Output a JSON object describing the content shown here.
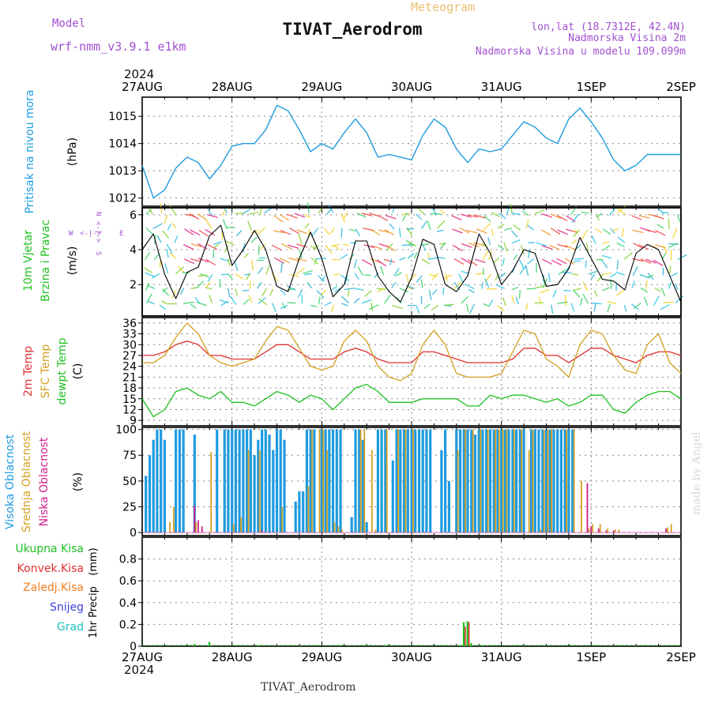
{
  "header": {
    "title": "TIVAT_Aerodrom",
    "subtitle": "Meteogram",
    "model_label": "Model",
    "model_name": "wrf-nmm_v3.9.1 e1km",
    "lonlat": "lon,lat (18.7312E, 42.4N)",
    "elevation": "Nadmorska Visina 2m",
    "model_elevation": "Nadmorska Visina u modelu 109.099m",
    "year_top": "2024",
    "year_bottom": "2024",
    "bottom_title": "TIVAT_Aerodrom",
    "credit": "made by Angel"
  },
  "colors": {
    "pressure": "#1e9be0",
    "t2m": "#e03030",
    "sfc": "#d4a020",
    "dewpt": "#20c020",
    "cloud_high": "#1e9be0",
    "cloud_mid": "#d4a020",
    "cloud_low": "#d0208c",
    "purple": "#a050d0",
    "grid": "#888888"
  },
  "chart_data": [
    {
      "type": "line",
      "id": "pressure",
      "ylabel": [
        "Pritisak na nivou mora",
        "(hPa)"
      ],
      "ylim": [
        1011.7,
        1015.7
      ],
      "yticks": [
        1012,
        1013,
        1014,
        1015
      ],
      "days": [
        "27AUG",
        "28AUG",
        "29AUG",
        "30AUG",
        "31AUG",
        "1SEP",
        "2SEP"
      ],
      "x_hours": [
        0,
        3,
        6,
        9,
        12,
        15,
        18,
        21,
        24,
        27,
        30,
        33,
        36,
        39,
        42,
        45,
        48,
        51,
        54,
        57,
        60,
        63,
        66,
        69,
        72,
        75,
        78,
        81,
        84,
        87,
        90,
        93,
        96,
        99,
        102,
        105,
        108,
        111,
        114,
        117,
        120,
        123,
        126,
        129,
        132,
        135,
        138,
        141,
        144
      ],
      "values": [
        1013.2,
        1012.0,
        1012.3,
        1013.1,
        1013.5,
        1013.3,
        1012.7,
        1013.2,
        1013.9,
        1014.0,
        1014.0,
        1014.5,
        1015.4,
        1015.2,
        1014.5,
        1013.7,
        1014.0,
        1013.8,
        1014.4,
        1014.9,
        1014.4,
        1013.5,
        1013.6,
        1013.5,
        1013.4,
        1014.3,
        1014.9,
        1014.6,
        1013.8,
        1013.3,
        1013.8,
        1013.7,
        1013.8,
        1014.3,
        1014.8,
        1014.6,
        1014.2,
        1014.0,
        1014.9,
        1015.3,
        1014.8,
        1014.2,
        1013.4,
        1013.0,
        1013.2,
        1013.6,
        1013.6,
        1013.6,
        1013.6
      ]
    },
    {
      "type": "line",
      "id": "wind",
      "ylabel": [
        "10m Vjetar",
        "Brzina i Pravac",
        "(m/s)"
      ],
      "compass": [
        "N",
        "S",
        "W",
        "E",
        "<-|->"
      ],
      "ylim": [
        0.2,
        6.4
      ],
      "yticks": [
        2,
        4,
        6
      ],
      "x_hours": [
        0,
        3,
        6,
        9,
        12,
        15,
        18,
        21,
        24,
        27,
        30,
        33,
        36,
        39,
        42,
        45,
        48,
        51,
        54,
        57,
        60,
        63,
        66,
        69,
        72,
        75,
        78,
        81,
        84,
        87,
        90,
        93,
        96,
        99,
        102,
        105,
        108,
        111,
        114,
        117,
        120,
        123,
        126,
        129,
        132,
        135,
        138,
        141,
        144
      ],
      "values": [
        4.0,
        4.9,
        2.6,
        1.2,
        2.7,
        3.0,
        4.8,
        5.4,
        3.1,
        4.0,
        5.1,
        4.0,
        1.9,
        1.6,
        3.5,
        5.0,
        3.5,
        1.3,
        2.0,
        4.5,
        4.5,
        2.5,
        1.6,
        1.0,
        2.4,
        4.6,
        4.3,
        2.0,
        1.6,
        2.5,
        4.9,
        3.8,
        2.0,
        2.8,
        4.0,
        3.8,
        1.9,
        2.0,
        2.9,
        4.7,
        3.5,
        2.3,
        2.2,
        1.7,
        3.8,
        4.3,
        4.0,
        2.5,
        1.0
      ]
    },
    {
      "type": "line",
      "id": "temperature",
      "ylabel": [
        "2m Temp",
        "SFC Temp",
        "dewpt Temp",
        "(C)"
      ],
      "ylim": [
        7.5,
        37.5
      ],
      "yticks": [
        9,
        12,
        15,
        18,
        21,
        24,
        27,
        30,
        33,
        36
      ],
      "x_hours": [
        0,
        3,
        6,
        9,
        12,
        15,
        18,
        21,
        24,
        27,
        30,
        33,
        36,
        39,
        42,
        45,
        48,
        51,
        54,
        57,
        60,
        63,
        66,
        69,
        72,
        75,
        78,
        81,
        84,
        87,
        90,
        93,
        96,
        99,
        102,
        105,
        108,
        111,
        114,
        117,
        120,
        123,
        126,
        129,
        132,
        135,
        138,
        141,
        144
      ],
      "series": [
        {
          "name": "2m Temp",
          "values": [
            27,
            27,
            28,
            30,
            31,
            30,
            27,
            27,
            26,
            26,
            26,
            28,
            30,
            30,
            28,
            26,
            26,
            26,
            28,
            29,
            28,
            26,
            25,
            25,
            25,
            28,
            28,
            27,
            26,
            25,
            25,
            25,
            25,
            26,
            29,
            29,
            27,
            27,
            25,
            27,
            29,
            29,
            27,
            26,
            25,
            27,
            28,
            28,
            27
          ]
        },
        {
          "name": "SFC Temp",
          "values": [
            25,
            25,
            27,
            32,
            36,
            33,
            27,
            25,
            24,
            25,
            26,
            31,
            35,
            34,
            29,
            24,
            23,
            24,
            31,
            34,
            31,
            24,
            21,
            20,
            22,
            30,
            34,
            30,
            22,
            21,
            21,
            21,
            22,
            28,
            34,
            33,
            26,
            24,
            21,
            30,
            34,
            33,
            27,
            23,
            22,
            30,
            33,
            25,
            22
          ]
        },
        {
          "name": "dewpt Temp",
          "values": [
            15,
            10,
            12,
            17,
            18,
            16,
            15,
            17,
            14,
            14,
            13,
            15,
            17,
            16,
            14,
            16,
            15,
            12,
            15,
            18,
            19,
            17,
            14,
            14,
            14,
            15,
            15,
            15,
            15,
            13,
            13,
            16,
            15,
            16,
            16,
            15,
            14,
            15,
            13,
            14,
            16,
            16,
            12,
            11,
            14,
            16,
            17,
            17,
            15
          ]
        }
      ]
    },
    {
      "type": "bar",
      "id": "cloud",
      "ylabel": [
        "Visoka Oblacnost",
        "Srednja Oblacnost",
        "Niska Oblacnost",
        "(%)"
      ],
      "ylim": [
        -3,
        102
      ],
      "yticks": [
        0,
        25,
        50,
        75,
        100
      ],
      "high_hours": [
        1,
        2,
        3,
        4,
        5,
        6,
        9,
        10,
        11,
        14,
        20,
        22,
        23,
        24,
        25,
        26,
        27,
        28,
        29,
        30,
        31,
        32,
        33,
        34,
        35,
        36,
        37,
        38,
        41,
        42,
        43,
        44,
        45,
        46,
        48,
        49,
        50,
        51,
        52,
        53,
        56,
        57,
        58,
        59,
        60,
        63,
        64,
        65,
        67,
        68,
        69,
        70,
        71,
        72,
        73,
        74,
        75,
        76,
        77,
        80,
        81,
        82,
        84,
        85,
        86,
        87,
        88,
        89,
        90,
        91,
        92,
        93,
        94,
        95,
        96,
        97,
        98,
        99,
        100,
        101,
        102,
        104,
        105,
        106,
        107,
        108,
        109,
        110,
        111,
        112,
        113,
        114,
        115
      ],
      "high_values": [
        55,
        75,
        90,
        100,
        100,
        90,
        100,
        100,
        100,
        95,
        100,
        100,
        100,
        100,
        100,
        100,
        100,
        100,
        100,
        75,
        90,
        100,
        100,
        95,
        80,
        100,
        100,
        90,
        30,
        40,
        40,
        100,
        100,
        100,
        100,
        100,
        100,
        100,
        100,
        100,
        15,
        100,
        100,
        90,
        10,
        100,
        100,
        100,
        70,
        100,
        100,
        100,
        100,
        100,
        100,
        100,
        100,
        100,
        100,
        80,
        100,
        50,
        100,
        100,
        100,
        100,
        100,
        95,
        100,
        100,
        100,
        100,
        100,
        100,
        100,
        100,
        100,
        100,
        100,
        100,
        100,
        100,
        100,
        100,
        100,
        100,
        100,
        100,
        100,
        100,
        100,
        100,
        100
      ],
      "mid_hours": [
        7,
        8,
        14,
        18,
        24,
        26,
        28,
        31,
        37,
        44,
        45,
        47,
        48,
        49,
        51,
        52,
        53,
        58,
        59,
        61,
        62,
        65,
        68,
        70,
        72,
        84,
        86,
        88,
        90,
        92,
        94,
        95,
        96,
        97,
        99,
        101,
        103,
        104,
        106,
        107,
        108,
        109,
        113,
        115,
        117,
        119,
        120,
        122,
        124,
        126,
        127,
        140,
        141
      ],
      "mid_values": [
        10,
        25,
        10,
        78,
        8,
        15,
        80,
        80,
        25,
        45,
        100,
        100,
        100,
        80,
        10,
        6,
        3,
        100,
        100,
        80,
        3,
        100,
        100,
        100,
        100,
        80,
        100,
        100,
        100,
        100,
        100,
        100,
        100,
        100,
        100,
        100,
        80,
        100,
        3,
        100,
        100,
        100,
        100,
        100,
        50,
        4,
        8,
        8,
        4,
        3,
        3,
        5,
        8
      ],
      "low_hours": [
        14,
        15,
        16,
        32,
        119,
        120,
        122,
        124,
        126,
        140
      ],
      "low_values": [
        26,
        12,
        6,
        2,
        48,
        6,
        4,
        2,
        2,
        4
      ]
    },
    {
      "type": "bar",
      "id": "precip",
      "ylabel": [
        "1hr Precip",
        "(mm)"
      ],
      "legend": [
        "Ukupna Kisa",
        "Konvek.Kisa",
        "Zaledj.Kisa",
        "Snijeg",
        "Grad"
      ],
      "ylim": [
        0,
        1.0
      ],
      "yticks": [
        0,
        0.2,
        0.4,
        0.6,
        0.8
      ],
      "ytick_labels": [
        "0",
        "0.2",
        "0.4",
        "0.6",
        "0.8"
      ],
      "total": [
        [
          14,
          0.02
        ],
        [
          18,
          0.04
        ],
        [
          31,
          0.01
        ],
        [
          65,
          0.005
        ],
        [
          85,
          0.01
        ],
        [
          86,
          0.22
        ],
        [
          87,
          0.23
        ],
        [
          88,
          0.03
        ],
        [
          91,
          0.01
        ]
      ],
      "convective": [
        [
          86,
          0.18
        ],
        [
          87,
          0.22
        ]
      ]
    }
  ]
}
